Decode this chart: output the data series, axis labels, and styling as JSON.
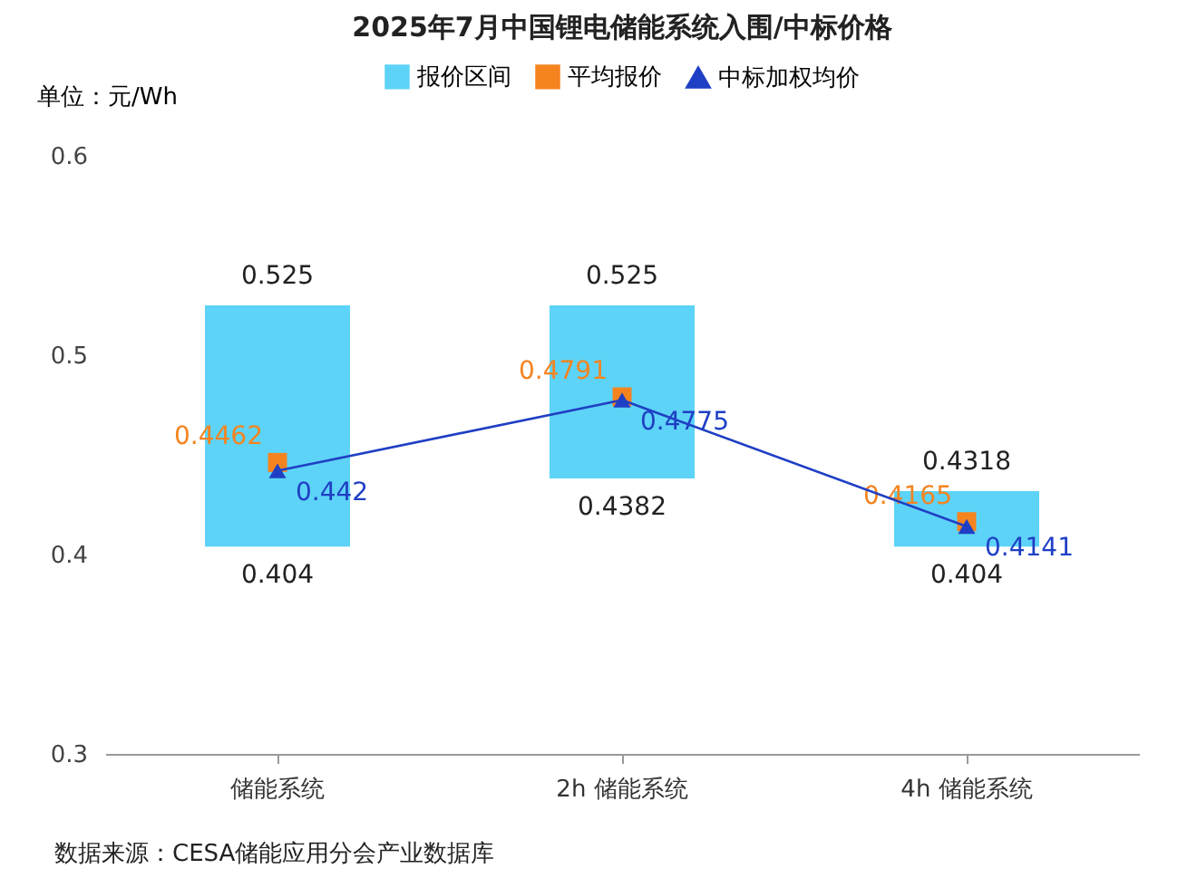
{
  "chart_data": {
    "type": "bar",
    "title": "2025年7月中国锂电储能系统入围/中标价格",
    "ylabel": "单位：元/Wh",
    "categories": [
      "储能系统",
      "2h 储能系统",
      "4h 储能系统"
    ],
    "series": [
      {
        "name": "报价区间",
        "color": "#5dd3f7",
        "base": [
          0.404,
          0.4382,
          0.404
        ],
        "values": [
          0.121,
          0.0868,
          0.0278
        ]
      },
      {
        "name": "平均报价",
        "type": "scatter",
        "marker": "square",
        "color": "#f5841f",
        "values": [
          0.4462,
          0.4791,
          0.4165
        ],
        "value_labels": [
          "0.4462",
          "0.4791",
          "0.4165"
        ]
      },
      {
        "name": "中标加权均价",
        "type": "line",
        "marker": "triangle",
        "color": "#1f3fc4",
        "values": [
          0.442,
          0.4775,
          0.4141
        ],
        "value_labels": [
          "0.442",
          "0.4775",
          "0.4141"
        ]
      }
    ],
    "annotations": [
      "0.525",
      "0.525",
      "0.4318",
      "0.404",
      "0.4382",
      "0.404",
      "数据来源：CESA储能应用分会产业数据库"
    ],
    "ylim": [
      0.3,
      0.6
    ],
    "yticks": [
      {
        "value": 0.3,
        "label": "0.3"
      },
      {
        "value": 0.4,
        "label": "0.4"
      },
      {
        "value": 0.5,
        "label": "0.5"
      },
      {
        "value": 0.6,
        "label": "0.6"
      }
    ],
    "grid": false,
    "legend": "top"
  }
}
